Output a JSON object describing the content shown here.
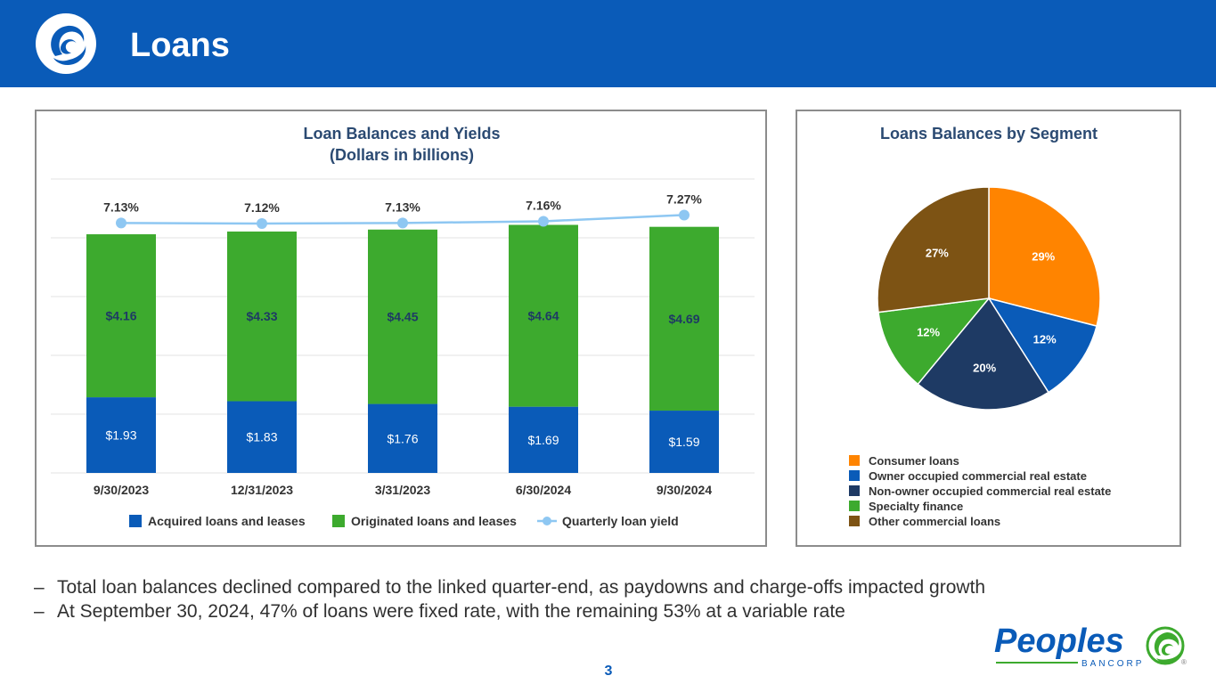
{
  "header": {
    "title": "Loans"
  },
  "colors": {
    "header_bg": "#0a5bb8",
    "acquired": "#0a5bb8",
    "originated": "#3daa2e",
    "yield_line": "#8ec7f2",
    "chart_title": "#2b4a72",
    "consumer": "#ff8400",
    "owner_occupied": "#0a5bb8",
    "non_owner_occupied": "#1e3a64",
    "specialty": "#3daa2e",
    "other_commercial": "#7d5314"
  },
  "chart_data": [
    {
      "type": "bar",
      "stacked": true,
      "title": "Loan Balances and Yields",
      "subtitle": "(Dollars in billions)",
      "categories": [
        "9/30/2023",
        "12/31/2023",
        "3/31/2023",
        "6/30/2024",
        "9/30/2024"
      ],
      "series": [
        {
          "name": "Acquired loans and leases",
          "values": [
            1.93,
            1.83,
            1.76,
            1.69,
            1.59
          ],
          "labels": [
            "$1.93",
            "$1.83",
            "$1.76",
            "$1.69",
            "$1.59"
          ]
        },
        {
          "name": "Originated loans and leases",
          "values": [
            4.16,
            4.33,
            4.45,
            4.64,
            4.69
          ],
          "labels": [
            "$4.16",
            "$4.33",
            "$4.45",
            "$4.64",
            "$4.69"
          ]
        }
      ],
      "line_series": {
        "name": "Quarterly loan yield",
        "values": [
          7.13,
          7.12,
          7.13,
          7.16,
          7.27
        ],
        "labels": [
          "7.13%",
          "7.12%",
          "7.13%",
          "7.16%",
          "7.27%"
        ]
      },
      "ylim": [
        0,
        7.5
      ],
      "grid": true,
      "legend": "bottom"
    },
    {
      "type": "pie",
      "title": "Loans Balances by Segment",
      "slices": [
        {
          "name": "Consumer loans",
          "value": 29,
          "label": "29%"
        },
        {
          "name": "Owner occupied commercial real estate",
          "value": 12,
          "label": "12%"
        },
        {
          "name": "Non-owner occupied commercial real estate",
          "value": 20,
          "label": "20%"
        },
        {
          "name": "Specialty finance",
          "value": 12,
          "label": "12%"
        },
        {
          "name": "Other commercial loans",
          "value": 27,
          "label": "27%"
        }
      ],
      "legend": "bottom-left"
    }
  ],
  "bullets": [
    "Total loan balances declined compared to the linked quarter-end, as paydowns and charge-offs impacted growth",
    "At September 30, 2024, 47% of loans were fixed rate, with the remaining 53% at a variable rate"
  ],
  "bullet_marker": "–",
  "page_number": "3",
  "brand": {
    "name": "Peoples",
    "sub": "BANCORP",
    "mark": "®"
  }
}
